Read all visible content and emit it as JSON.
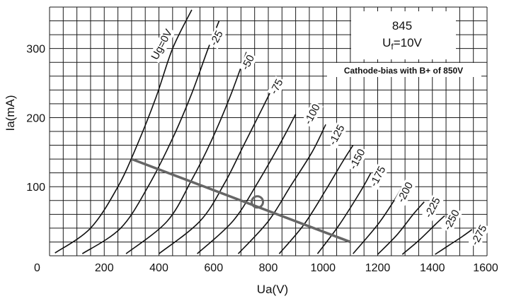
{
  "chart_data": {
    "type": "line",
    "title": "845",
    "subtitle": "U",
    "subtitle_sub": "f",
    "subtitle_rest": "=10V",
    "annotation": "Cathode-bias with B+ of 850V",
    "xlabel": "Ua(V)",
    "ylabel": "Ia(mA)",
    "xlim": [
      0,
      1600
    ],
    "ylim": [
      0,
      360
    ],
    "x_ticks": [
      "0",
      "200",
      "400",
      "600",
      "800",
      "1000",
      "1200",
      "1400",
      "1600"
    ],
    "y_ticks": [
      "100",
      "200",
      "300"
    ],
    "grid": true,
    "grid_minor_x": 50,
    "grid_minor_y": 20,
    "curve_color": "#111111",
    "series": [
      {
        "name": "Ug=0V",
        "label_at": [
          410,
          306
        ],
        "points": [
          [
            20,
            4
          ],
          [
            150,
            40
          ],
          [
            250,
            100
          ],
          [
            320,
            160
          ],
          [
            390,
            230
          ],
          [
            450,
            300
          ],
          [
            520,
            356
          ]
        ]
      },
      {
        "name": "-25",
        "label_at": [
          610,
          315
        ],
        "points": [
          [
            120,
            3
          ],
          [
            260,
            40
          ],
          [
            360,
            100
          ],
          [
            450,
            170
          ],
          [
            520,
            235
          ],
          [
            580,
            300
          ],
          [
            620,
            340
          ]
        ]
      },
      {
        "name": "-50",
        "label_at": [
          725,
          280
        ],
        "points": [
          [
            280,
            3
          ],
          [
            430,
            50
          ],
          [
            520,
            110
          ],
          [
            590,
            165
          ],
          [
            660,
            230
          ],
          [
            720,
            295
          ]
        ]
      },
      {
        "name": "-75",
        "label_at": [
          830,
          245
        ],
        "points": [
          [
            400,
            3
          ],
          [
            550,
            50
          ],
          [
            640,
            105
          ],
          [
            710,
            160
          ],
          [
            780,
            215
          ],
          [
            830,
            255
          ]
        ]
      },
      {
        "name": "-100",
        "label_at": [
          960,
          205
        ],
        "points": [
          [
            540,
            3
          ],
          [
            670,
            50
          ],
          [
            760,
            105
          ],
          [
            840,
            160
          ],
          [
            900,
            205
          ]
        ]
      },
      {
        "name": "-125",
        "label_at": [
          1050,
          175
        ],
        "points": [
          [
            690,
            3
          ],
          [
            800,
            50
          ],
          [
            880,
            100
          ],
          [
            960,
            150
          ],
          [
            1010,
            190
          ]
        ]
      },
      {
        "name": "-150",
        "label_at": [
          1125,
          140
        ],
        "points": [
          [
            840,
            3
          ],
          [
            930,
            45
          ],
          [
            1010,
            95
          ],
          [
            1070,
            135
          ],
          [
            1110,
            160
          ]
        ]
      },
      {
        "name": "-175",
        "label_at": [
          1200,
          115
        ],
        "points": [
          [
            980,
            3
          ],
          [
            1060,
            45
          ],
          [
            1140,
            95
          ],
          [
            1175,
            120
          ]
        ]
      },
      {
        "name": "-200",
        "label_at": [
          1300,
          92
        ],
        "points": [
          [
            1110,
            3
          ],
          [
            1200,
            45
          ],
          [
            1260,
            80
          ],
          [
            1290,
            100
          ]
        ]
      },
      {
        "name": "-225",
        "label_at": [
          1400,
          70
        ],
        "points": [
          [
            1200,
            2
          ],
          [
            1270,
            30
          ],
          [
            1330,
            60
          ],
          [
            1370,
            78
          ]
        ]
      },
      {
        "name": "-250",
        "label_at": [
          1470,
          52
        ],
        "points": [
          [
            1290,
            2
          ],
          [
            1350,
            22
          ],
          [
            1410,
            45
          ],
          [
            1445,
            58
          ]
        ]
      },
      {
        "name": "-275",
        "label_at": [
          1570,
          30
        ],
        "points": [
          [
            1410,
            2
          ],
          [
            1460,
            15
          ],
          [
            1510,
            28
          ],
          [
            1545,
            38
          ]
        ]
      }
    ],
    "load_line": {
      "points": [
        [
          300,
          140
        ],
        [
          1100,
          20
        ]
      ],
      "color": "#666666"
    },
    "operating_point": {
      "x": 760,
      "y": 78,
      "color": "#666666"
    }
  }
}
